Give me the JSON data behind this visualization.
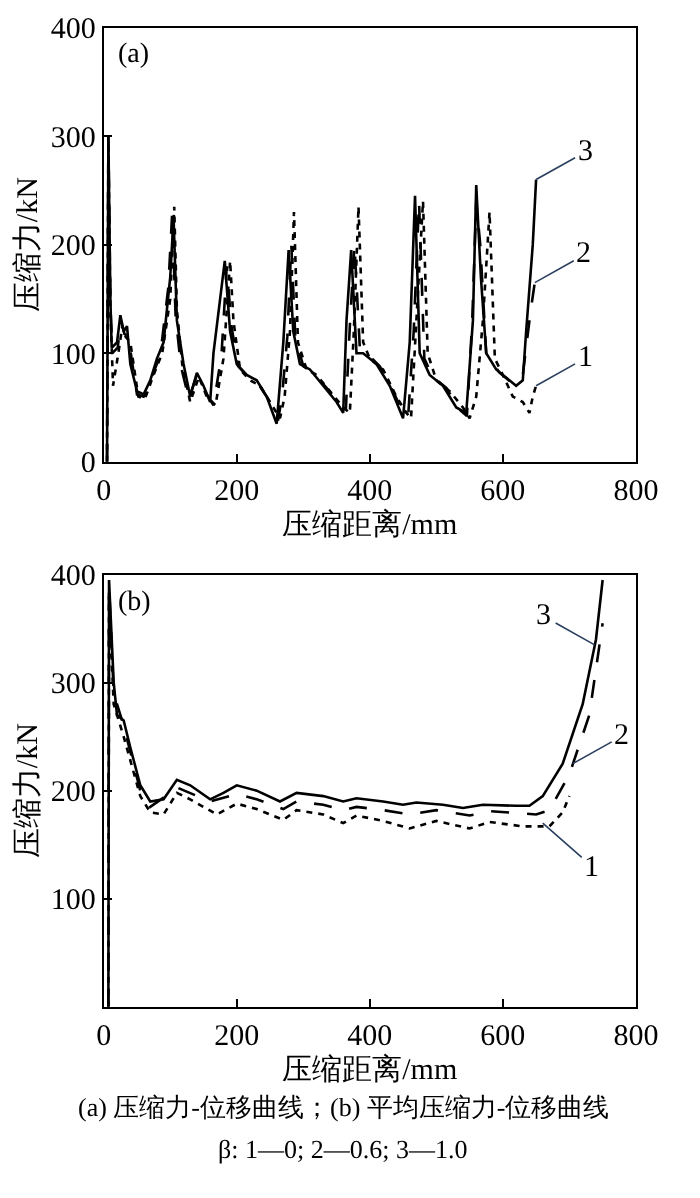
{
  "chart_data": [
    {
      "type": "line",
      "title": "(a)",
      "xlabel": "压缩距离/mm",
      "ylabel": "压缩力/kN",
      "xlim": [
        0,
        800
      ],
      "ylim": [
        0,
        400
      ],
      "xticks": [
        0,
        200,
        400,
        600,
        800
      ],
      "yticks": [
        0,
        100,
        200,
        300,
        400
      ],
      "grid": false,
      "marker": "none",
      "series": [
        {
          "color": "#000000",
          "line_style": "dotted",
          "x": [
            5,
            7,
            10,
            14,
            22,
            28,
            33,
            40,
            52,
            62,
            75,
            88,
            100,
            106,
            110,
            118,
            130,
            143,
            155,
            168,
            180,
            190,
            195,
            205,
            220,
            235,
            250,
            265,
            272,
            280,
            286,
            292,
            305,
            320,
            340,
            360,
            370,
            376,
            383,
            390,
            400,
            420,
            440,
            455,
            462,
            470,
            480,
            487,
            500,
            520,
            540,
            550,
            560,
            570,
            580,
            588,
            600,
            615,
            630,
            640,
            645,
            650
          ],
          "values": [
            0,
            290,
            140,
            70,
            100,
            125,
            115,
            110,
            60,
            58,
            80,
            100,
            150,
            235,
            140,
            90,
            55,
            78,
            60,
            52,
            95,
            185,
            130,
            85,
            75,
            70,
            55,
            40,
            60,
            120,
            230,
            110,
            85,
            80,
            65,
            50,
            45,
            120,
            235,
            110,
            95,
            85,
            60,
            45,
            40,
            130,
            240,
            100,
            75,
            65,
            50,
            40,
            60,
            130,
            230,
            95,
            80,
            60,
            55,
            45,
            60,
            70
          ]
        },
        {
          "color": "#000000",
          "line_style": "dashed",
          "x": [
            5,
            7,
            10,
            13,
            21,
            26,
            31,
            37,
            50,
            60,
            72,
            85,
            97,
            103,
            108,
            116,
            128,
            140,
            152,
            165,
            177,
            185,
            192,
            202,
            217,
            232,
            247,
            262,
            268,
            276,
            282,
            288,
            300,
            315,
            335,
            355,
            364,
            370,
            377,
            385,
            395,
            415,
            435,
            452,
            458,
            466,
            474,
            482,
            495,
            515,
            535,
            546,
            554,
            560,
            566,
            575,
            595,
            615,
            630,
            637,
            642,
            648
          ],
          "values": [
            0,
            300,
            145,
            100,
            105,
            130,
            118,
            115,
            62,
            60,
            78,
            98,
            160,
            230,
            135,
            88,
            58,
            80,
            65,
            52,
            98,
            180,
            125,
            88,
            78,
            72,
            58,
            38,
            60,
            115,
            200,
            115,
            88,
            82,
            68,
            52,
            48,
            125,
            200,
            105,
            100,
            88,
            65,
            42,
            45,
            120,
            240,
            95,
            78,
            68,
            48,
            42,
            130,
            240,
            200,
            100,
            82,
            72,
            80,
            115,
            140,
            165
          ]
        },
        {
          "color": "#000000",
          "line_style": "solid",
          "x": [
            5,
            7,
            10,
            12,
            20,
            25,
            30,
            35,
            40,
            50,
            60,
            70,
            80,
            90,
            100,
            105,
            110,
            120,
            130,
            140,
            150,
            160,
            165,
            175,
            182,
            190,
            200,
            215,
            230,
            245,
            260,
            270,
            278,
            285,
            295,
            310,
            330,
            350,
            360,
            365,
            372,
            380,
            390,
            410,
            430,
            450,
            460,
            468,
            475,
            490,
            510,
            530,
            545,
            555,
            560,
            567,
            575,
            590,
            600,
            620,
            630,
            635,
            645,
            650
          ],
          "values": [
            0,
            300,
            150,
            105,
            110,
            135,
            120,
            125,
            90,
            65,
            62,
            75,
            95,
            110,
            170,
            225,
            130,
            90,
            60,
            82,
            70,
            55,
            100,
            150,
            185,
            120,
            90,
            80,
            75,
            60,
            35,
            110,
            195,
            120,
            90,
            85,
            70,
            55,
            45,
            130,
            195,
            100,
            100,
            90,
            70,
            40,
            110,
            245,
            100,
            80,
            70,
            50,
            45,
            130,
            255,
            170,
            100,
            85,
            80,
            70,
            75,
            120,
            200,
            260
          ]
        }
      ],
      "annotations": [
        {
          "text": "3",
          "x": 650,
          "y": 260
        },
        {
          "text": "2",
          "x": 648,
          "y": 165
        },
        {
          "text": "1",
          "x": 650,
          "y": 70
        }
      ]
    },
    {
      "type": "line",
      "title": "(b)",
      "xlabel": "压缩距离/mm",
      "ylabel": "压缩力/kN",
      "xlim": [
        0,
        800
      ],
      "ylim": [
        0,
        400
      ],
      "xticks": [
        0,
        200,
        400,
        600,
        800
      ],
      "yticks": [
        {
          "value": 0,
          "label": null
        },
        100,
        200,
        300,
        400
      ],
      "grid": false,
      "marker": "none",
      "series": [
        {
          "color": "#000000",
          "line_style": "dotted",
          "x": [
            7,
            8,
            15,
            30,
            55,
            70,
            90,
            110,
            130,
            170,
            200,
            230,
            270,
            290,
            330,
            360,
            380,
            420,
            460,
            500,
            550,
            580,
            630,
            670,
            690,
            700
          ],
          "values": [
            0,
            380,
            280,
            250,
            195,
            180,
            178,
            198,
            192,
            178,
            188,
            183,
            173,
            182,
            178,
            170,
            177,
            172,
            165,
            172,
            165,
            171,
            167,
            167,
            180,
            195
          ]
        },
        {
          "color": "#000000",
          "line_style": "dashed",
          "x": [
            7,
            8,
            15,
            30,
            55,
            70,
            100,
            110,
            160,
            200,
            230,
            270,
            290,
            330,
            360,
            380,
            420,
            460,
            500,
            550,
            580,
            650,
            670,
            700,
            730,
            750
          ],
          "values": [
            0,
            390,
            290,
            260,
            200,
            185,
            198,
            203,
            190,
            197,
            192,
            183,
            190,
            187,
            182,
            185,
            182,
            178,
            182,
            177,
            181,
            178,
            182,
            215,
            270,
            355
          ]
        },
        {
          "color": "#000000",
          "line_style": "solid",
          "x": [
            7,
            8,
            15,
            20,
            30,
            40,
            55,
            70,
            90,
            110,
            130,
            160,
            180,
            200,
            230,
            265,
            290,
            330,
            360,
            380,
            420,
            450,
            470,
            510,
            540,
            570,
            620,
            640,
            660,
            690,
            720,
            740,
            750
          ],
          "values": [
            0,
            395,
            300,
            270,
            265,
            240,
            205,
            190,
            192,
            210,
            205,
            192,
            198,
            205,
            200,
            190,
            198,
            195,
            190,
            193,
            190,
            187,
            189,
            187,
            184,
            187,
            186,
            186,
            195,
            225,
            280,
            340,
            395
          ]
        }
      ],
      "annotations": [
        {
          "text": "3",
          "x": 738,
          "y": 335
        },
        {
          "text": "2",
          "x": 705,
          "y": 225
        },
        {
          "text": "1",
          "x": 660,
          "y": 170
        },
        "(a) 压缩力-位移曲线；(b) 平均压缩力-位移曲线",
        "β: 1—0; 2—0.6; 3—1.0"
      ]
    }
  ]
}
